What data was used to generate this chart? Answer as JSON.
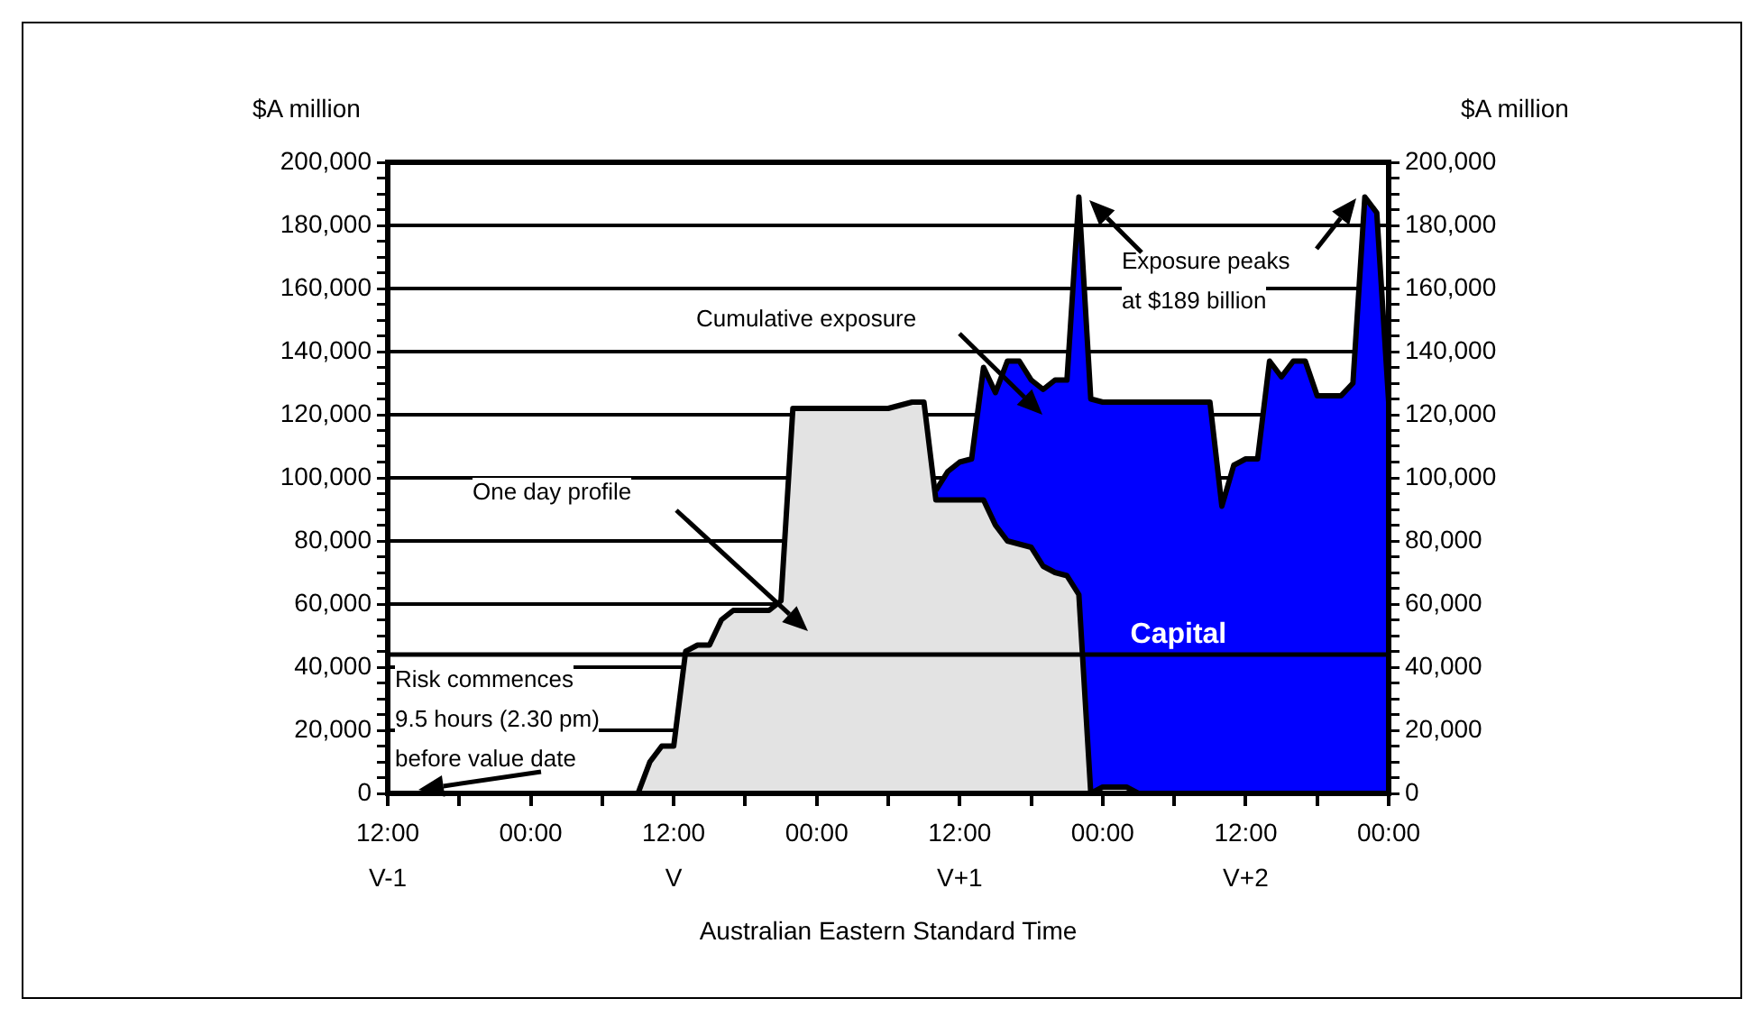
{
  "chart_data": {
    "type": "area",
    "xlabel": "Australian Eastern Standard Time",
    "ylabel": "$A million",
    "y2label": "$A million",
    "categories": [
      "12:00\nV-1",
      null,
      null,
      null,
      null,
      null,
      null,
      null,
      null,
      null,
      null,
      null,
      "00:00",
      null,
      null,
      null,
      null,
      null,
      null,
      null,
      null,
      null,
      null,
      null,
      "12:00\nV",
      null,
      null,
      null,
      null,
      null,
      null,
      null,
      null,
      null,
      null,
      null,
      "00:00",
      null,
      null,
      null,
      null,
      null,
      null,
      null,
      null,
      null,
      null,
      null,
      "12:00\nV+1",
      null,
      null,
      null,
      null,
      null,
      null,
      null,
      null,
      null,
      null,
      null,
      "00:00",
      null,
      null,
      null,
      null,
      null,
      null,
      null,
      null,
      null,
      null,
      null,
      "12:00\nV+2",
      null,
      null,
      null,
      null,
      null,
      null,
      null,
      null,
      null,
      null,
      null,
      "00:00"
    ],
    "ylim": [
      0,
      200000
    ],
    "yticks": [
      {
        "value": 0,
        "label": "0"
      },
      {
        "value": 5000,
        "label": null
      },
      {
        "value": 10000,
        "label": null
      },
      {
        "value": 15000,
        "label": null
      },
      {
        "value": 20000,
        "label": "20,000"
      },
      {
        "value": 25000,
        "label": null
      },
      {
        "value": 30000,
        "label": null
      },
      {
        "value": 35000,
        "label": null
      },
      {
        "value": 40000,
        "label": "40,000"
      },
      {
        "value": 45000,
        "label": null
      },
      {
        "value": 50000,
        "label": null
      },
      {
        "value": 55000,
        "label": null
      },
      {
        "value": 60000,
        "label": "60,000"
      },
      {
        "value": 65000,
        "label": null
      },
      {
        "value": 70000,
        "label": null
      },
      {
        "value": 75000,
        "label": null
      },
      {
        "value": 80000,
        "label": "80,000"
      },
      {
        "value": 85000,
        "label": null
      },
      {
        "value": 90000,
        "label": null
      },
      {
        "value": 95000,
        "label": null
      },
      {
        "value": 100000,
        "label": "100,000"
      },
      {
        "value": 105000,
        "label": null
      },
      {
        "value": 110000,
        "label": null
      },
      {
        "value": 115000,
        "label": null
      },
      {
        "value": 120000,
        "label": "120,000"
      },
      {
        "value": 125000,
        "label": null
      },
      {
        "value": 130000,
        "label": null
      },
      {
        "value": 135000,
        "label": null
      },
      {
        "value": 140000,
        "label": "140,000"
      },
      {
        "value": 145000,
        "label": null
      },
      {
        "value": 150000,
        "label": null
      },
      {
        "value": 155000,
        "label": null
      },
      {
        "value": 160000,
        "label": "160,000"
      },
      {
        "value": 165000,
        "label": null
      },
      {
        "value": 170000,
        "label": null
      },
      {
        "value": 175000,
        "label": null
      },
      {
        "value": 180000,
        "label": "180,000"
      },
      {
        "value": 185000,
        "label": null
      },
      {
        "value": 190000,
        "label": null
      },
      {
        "value": 195000,
        "label": null
      },
      {
        "value": 200000,
        "label": "200,000"
      }
    ],
    "y2lim": [
      0,
      200000
    ],
    "y2ticks": [
      {
        "value": 0,
        "label": "0"
      },
      {
        "value": 5000,
        "label": null
      },
      {
        "value": 10000,
        "label": null
      },
      {
        "value": 15000,
        "label": null
      },
      {
        "value": 20000,
        "label": "20,000"
      },
      {
        "value": 25000,
        "label": null
      },
      {
        "value": 30000,
        "label": null
      },
      {
        "value": 35000,
        "label": null
      },
      {
        "value": 40000,
        "label": "40,000"
      },
      {
        "value": 45000,
        "label": null
      },
      {
        "value": 50000,
        "label": null
      },
      {
        "value": 55000,
        "label": null
      },
      {
        "value": 60000,
        "label": "60,000"
      },
      {
        "value": 65000,
        "label": null
      },
      {
        "value": 70000,
        "label": null
      },
      {
        "value": 75000,
        "label": null
      },
      {
        "value": 80000,
        "label": "80,000"
      },
      {
        "value": 85000,
        "label": null
      },
      {
        "value": 90000,
        "label": null
      },
      {
        "value": 95000,
        "label": null
      },
      {
        "value": 100000,
        "label": "100,000"
      },
      {
        "value": 105000,
        "label": null
      },
      {
        "value": 110000,
        "label": null
      },
      {
        "value": 115000,
        "label": null
      },
      {
        "value": 120000,
        "label": "120,000"
      },
      {
        "value": 125000,
        "label": null
      },
      {
        "value": 130000,
        "label": null
      },
      {
        "value": 135000,
        "label": null
      },
      {
        "value": 140000,
        "label": "140,000"
      },
      {
        "value": 145000,
        "label": null
      },
      {
        "value": 150000,
        "label": null
      },
      {
        "value": 155000,
        "label": null
      },
      {
        "value": 160000,
        "label": "160,000"
      },
      {
        "value": 165000,
        "label": null
      },
      {
        "value": 170000,
        "label": null
      },
      {
        "value": 175000,
        "label": null
      },
      {
        "value": 180000,
        "label": "180,000"
      },
      {
        "value": 185000,
        "label": null
      },
      {
        "value": 190000,
        "label": null
      },
      {
        "value": 195000,
        "label": null
      },
      {
        "value": 200000,
        "label": "200,000"
      }
    ],
    "grid": "y",
    "marker": "none",
    "line_style": "solid",
    "series": [
      {
        "color": "#e3e3e3",
        "values": [
          0,
          0,
          0,
          0,
          0,
          0,
          0,
          0,
          0,
          0,
          0,
          0,
          0,
          0,
          0,
          0,
          0,
          0,
          0,
          0,
          0,
          0,
          10000,
          15000,
          15000,
          45000,
          47000,
          47000,
          55000,
          58000,
          58000,
          58000,
          58000,
          61000,
          122000,
          122000,
          122000,
          122000,
          122000,
          122000,
          122000,
          122000,
          122000,
          123000,
          124000,
          124000,
          93000,
          93000,
          93000,
          93000,
          93000,
          85000,
          80000,
          79000,
          78000,
          72000,
          70000,
          69000,
          63000,
          0,
          2000,
          2000,
          2000,
          0,
          0,
          0,
          0,
          0,
          0,
          0,
          0,
          0,
          0,
          0,
          0,
          0,
          0,
          0,
          0,
          0,
          0,
          0,
          0,
          0,
          0
        ]
      },
      {
        "color": "#0000ff",
        "values": [
          null,
          null,
          null,
          null,
          null,
          null,
          null,
          null,
          null,
          null,
          null,
          null,
          null,
          null,
          null,
          null,
          null,
          null,
          null,
          null,
          null,
          null,
          null,
          null,
          null,
          null,
          null,
          null,
          null,
          null,
          null,
          null,
          null,
          null,
          null,
          null,
          null,
          null,
          null,
          null,
          null,
          null,
          null,
          null,
          null,
          null,
          96000,
          102000,
          105000,
          106000,
          135000,
          127000,
          137000,
          137000,
          131000,
          128000,
          131000,
          131000,
          189000,
          125000,
          124000,
          124000,
          124000,
          124000,
          124000,
          124000,
          124000,
          124000,
          124000,
          124000,
          91000,
          104000,
          106000,
          106000,
          137000,
          132000,
          137000,
          137000,
          126000,
          126000,
          126000,
          130000,
          189000,
          184000,
          124000
        ]
      }
    ],
    "ref_lines": [
      {
        "axis": "y",
        "value": 44000,
        "label": "Capital",
        "color": "#000000"
      }
    ],
    "annotations": [
      "Risk commences 9.5 hours (2.30 pm) before value date",
      "One day profile",
      "Cumulative exposure",
      "Exposure peaks at $189 billion"
    ]
  }
}
